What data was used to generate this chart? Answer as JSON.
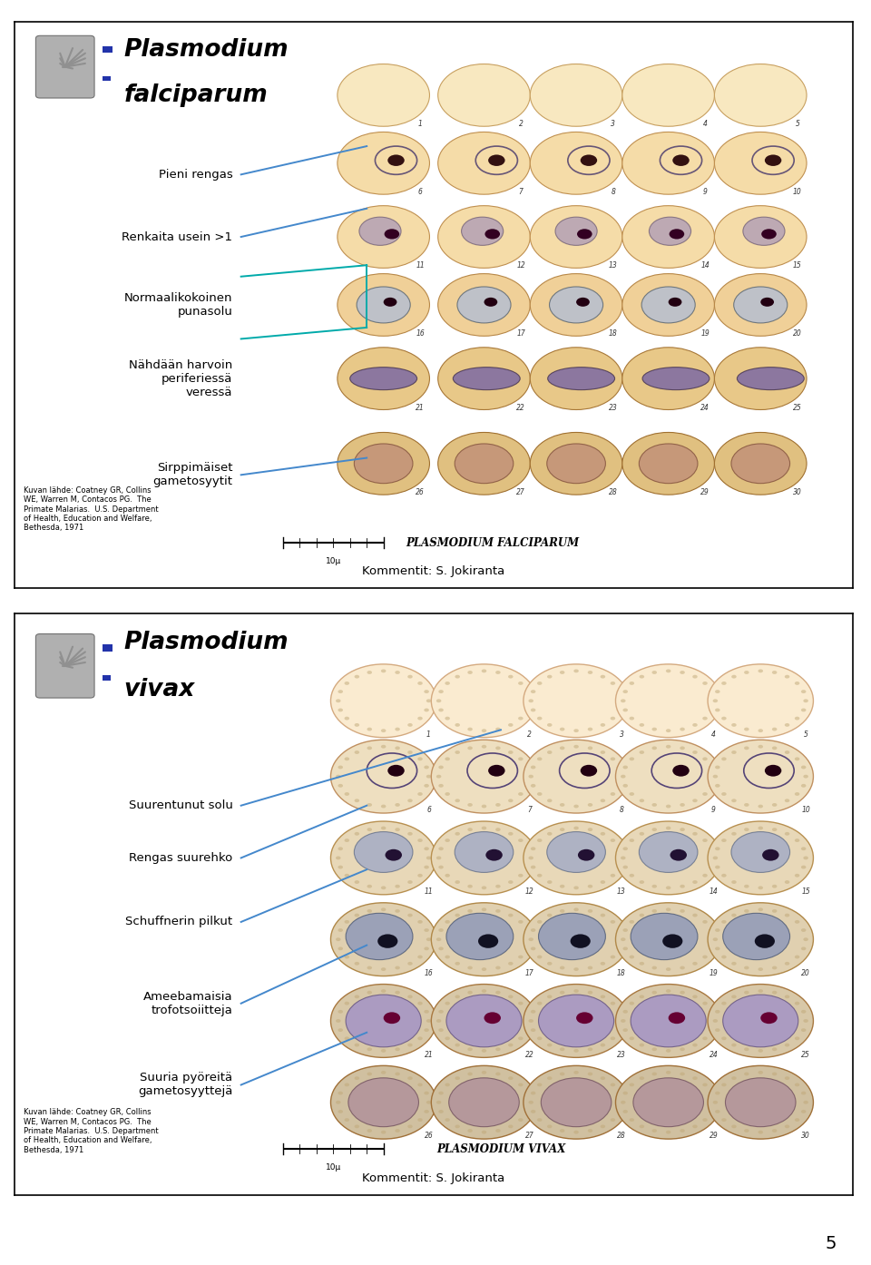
{
  "background_color": "#ffffff",
  "panel1": {
    "title_line1": "Plasmodium",
    "title_line2": "falciparum",
    "source_text": "Kuvan lähde: Coatney GR, Collins\nWE, Warren M, Contacos PG.  The\nPrimate Malarias.  U.S. Department\nof Health, Education and Welfare,\nBethesda, 1971",
    "comment": "Kommentit: S. Jokiranta",
    "species_label": "PLASMODIUM FALCIPARUM",
    "labels": [
      {
        "text": "Pieni rengas",
        "y": 73
      },
      {
        "text": "Renkaita usein >1",
        "y": 62
      },
      {
        "text": "Normaalikokoinen\npunasolu",
        "y": 50
      },
      {
        "text": "Nähdään harvoin\nperiferiessä\nveressä",
        "y": 37
      },
      {
        "text": "Sirppimäiset\ngametosyytit",
        "y": 20
      }
    ]
  },
  "panel2": {
    "title_line1": "Plasmodium",
    "title_line2": "vivax",
    "source_text": "Kuvan lähde: Coatney GR, Collins\nWE, Warren M, Contacos PG.  The\nPrimate Malarias.  U.S. Department\nof Health, Education and Welfare,\nBethesda, 1971",
    "comment": "Kommentit: S. Jokiranta",
    "species_label": "PLASMODIUM VIVAX",
    "labels": [
      {
        "text": "Suurentunut solu",
        "y": 67
      },
      {
        "text": "Rengas suurehko",
        "y": 58
      },
      {
        "text": "Schuffnerin pilkut",
        "y": 47
      },
      {
        "text": "Ameebamaisia\ntrofotsoiitteja",
        "y": 33
      },
      {
        "text": "Suuria pyöreitä\ngametosyyttejä",
        "y": 19
      }
    ]
  },
  "page_number": "5"
}
